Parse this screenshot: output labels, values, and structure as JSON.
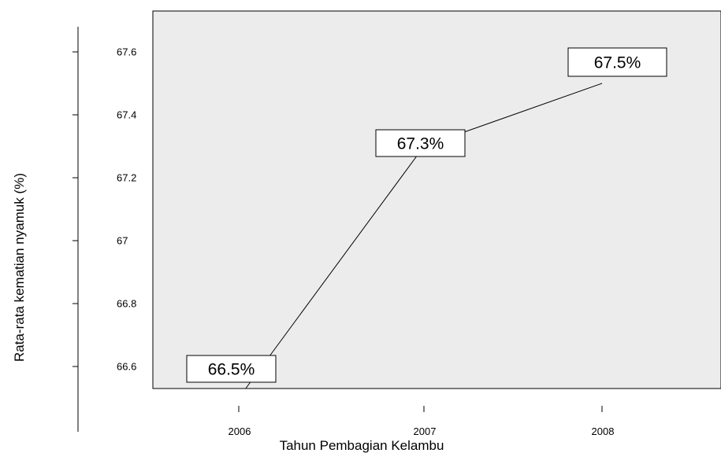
{
  "chart_data": {
    "type": "line",
    "title": "",
    "xlabel": "Tahun  Pembagian Kelambu",
    "ylabel": "Rata-rata kematian nyamuk  (%)",
    "categories": [
      "2006",
      "2007",
      "2008"
    ],
    "series": [
      {
        "values": [
          66.5,
          67.3,
          67.5
        ]
      }
    ],
    "data_labels": [
      "66.5%",
      "67.3%",
      "67.5%"
    ],
    "y_ticks": [
      66.6,
      66.8,
      67,
      67.2,
      67.4,
      67.6
    ],
    "y_tick_labels": [
      "66.6",
      "66.8",
      "67",
      "67.2",
      "67.4",
      "67.6"
    ],
    "ylim": [
      66.53,
      67.73
    ],
    "grid": false,
    "legend": "none",
    "colors": {
      "plot_background": "#ececec",
      "line": "#000000",
      "label_box": "#ffffff"
    }
  }
}
